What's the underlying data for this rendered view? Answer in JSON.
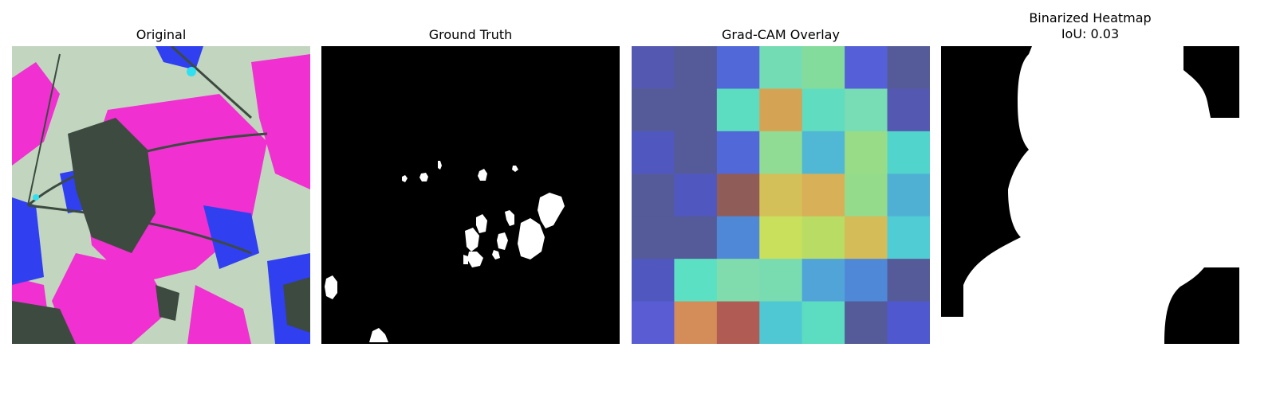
{
  "figure": {
    "panels": [
      {
        "title_lines": [
          "Original"
        ],
        "content": "rgb-false-color-leaf-photo"
      },
      {
        "title_lines": [
          "Ground Truth"
        ],
        "content": "binary-segmentation-mask"
      },
      {
        "title_lines": [
          "Grad-CAM Overlay"
        ],
        "content": "heatmap-7x7"
      },
      {
        "title_lines": [
          "Binarized Heatmap",
          "IoU: 0.03"
        ],
        "content": "binary-heatmap-mask"
      }
    ]
  },
  "chart_data": {
    "type": "heatmap",
    "title": "Grad-CAM Overlay",
    "rows": 7,
    "cols": 7,
    "colors": [
      [
        "#5558b0",
        "#555b98",
        "#5068d8",
        "#74dcb4",
        "#84dc9c",
        "#5560d8",
        "#555b98"
      ],
      [
        "#555b98",
        "#555b98",
        "#5cdcc0",
        "#d4a454",
        "#60dcc0",
        "#78dcb4",
        "#5558b0"
      ],
      [
        "#5058c0",
        "#555b98",
        "#5068d8",
        "#90dc94",
        "#50b8d4",
        "#98dc88",
        "#50d4cc"
      ],
      [
        "#555b98",
        "#5058c0",
        "#905c58",
        "#d4c058",
        "#d8b058",
        "#94dc8c",
        "#50b0d4"
      ],
      [
        "#555b98",
        "#555b98",
        "#5088d8",
        "#c8e05c",
        "#b8dc64",
        "#d4bc58",
        "#50ccd4"
      ],
      [
        "#5058c0",
        "#5ce0c4",
        "#80dcac",
        "#78dcb0",
        "#50a4d8",
        "#5088d8",
        "#555b98"
      ],
      [
        "#5a5cd4",
        "#d48c58",
        "#b05c54",
        "#50c8d4",
        "#5cdcc0",
        "#555b98",
        "#5058d0"
      ]
    ],
    "annotation": "IoU: 0.03"
  },
  "palette": {
    "leaf_dark": "#3c4a40",
    "leaf_light": "#c8dcc4",
    "magenta": "#f030d0",
    "blue": "#3040f0",
    "mask_bg": "#000000",
    "mask_fg": "#ffffff"
  }
}
